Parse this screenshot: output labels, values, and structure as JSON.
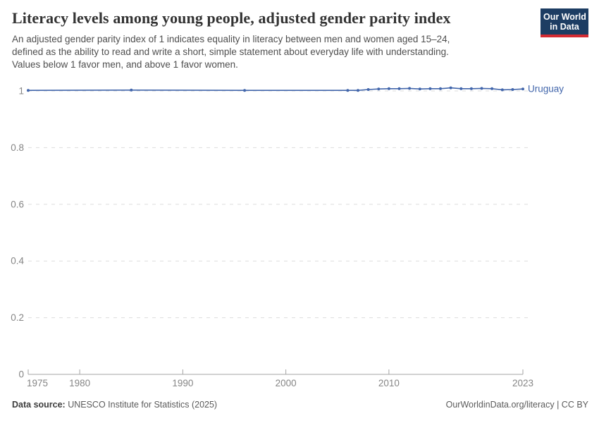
{
  "header": {
    "title": "Literacy levels among young people, adjusted gender parity index",
    "subtitle_lines": [
      "An adjusted gender parity index of 1 indicates equality in literacy between men and women aged 15–24,",
      "defined as the ability to read and write a short, simple statement about everyday life with understanding.",
      "Values below 1 favor men, and above 1 favor women."
    ]
  },
  "logo": {
    "line1": "Our World",
    "line2": "in Data"
  },
  "footer": {
    "data_source_label": "Data source:",
    "data_source_value": " UNESCO Institute for Statistics (2025)",
    "attribution": "OurWorldinData.org/literacy | CC BY"
  },
  "colors": {
    "background": "#ffffff",
    "title": "#333333",
    "subtitle": "#4e4e4e",
    "logo_navy": "#1d3d63",
    "logo_red": "#d42b33",
    "line_blue": "#4266ab",
    "gridline": "#dddddd",
    "axis": "#a3a3a3",
    "tick_label": "#858585",
    "footer_text": "#5b5b5b"
  },
  "chart_data": {
    "type": "line",
    "title": "Literacy levels among young people, adjusted gender parity index",
    "xlabel": "",
    "ylabel": "",
    "xlim": [
      1975,
      2023
    ],
    "ylim": [
      0,
      1
    ],
    "x_ticks": [
      1975,
      1980,
      1990,
      2000,
      2010,
      2023
    ],
    "y_ticks": [
      0,
      0.2,
      0.4,
      0.6,
      0.8,
      1
    ],
    "grid": "dashed horizontal gridlines",
    "legend_position": "end-of-line label",
    "series": [
      {
        "name": "Uruguay",
        "color": "#4266ab",
        "x": [
          1975,
          1985,
          1996,
          2006,
          2007,
          2008,
          2009,
          2010,
          2011,
          2012,
          2013,
          2014,
          2015,
          2016,
          2017,
          2018,
          2019,
          2020,
          2021,
          2022,
          2023
        ],
        "values": [
          1.002,
          1.003,
          1.002,
          1.002,
          1.002,
          1.005,
          1.007,
          1.008,
          1.008,
          1.009,
          1.007,
          1.008,
          1.008,
          1.011,
          1.008,
          1.008,
          1.009,
          1.008,
          1.004,
          1.005,
          1.007
        ]
      }
    ]
  }
}
